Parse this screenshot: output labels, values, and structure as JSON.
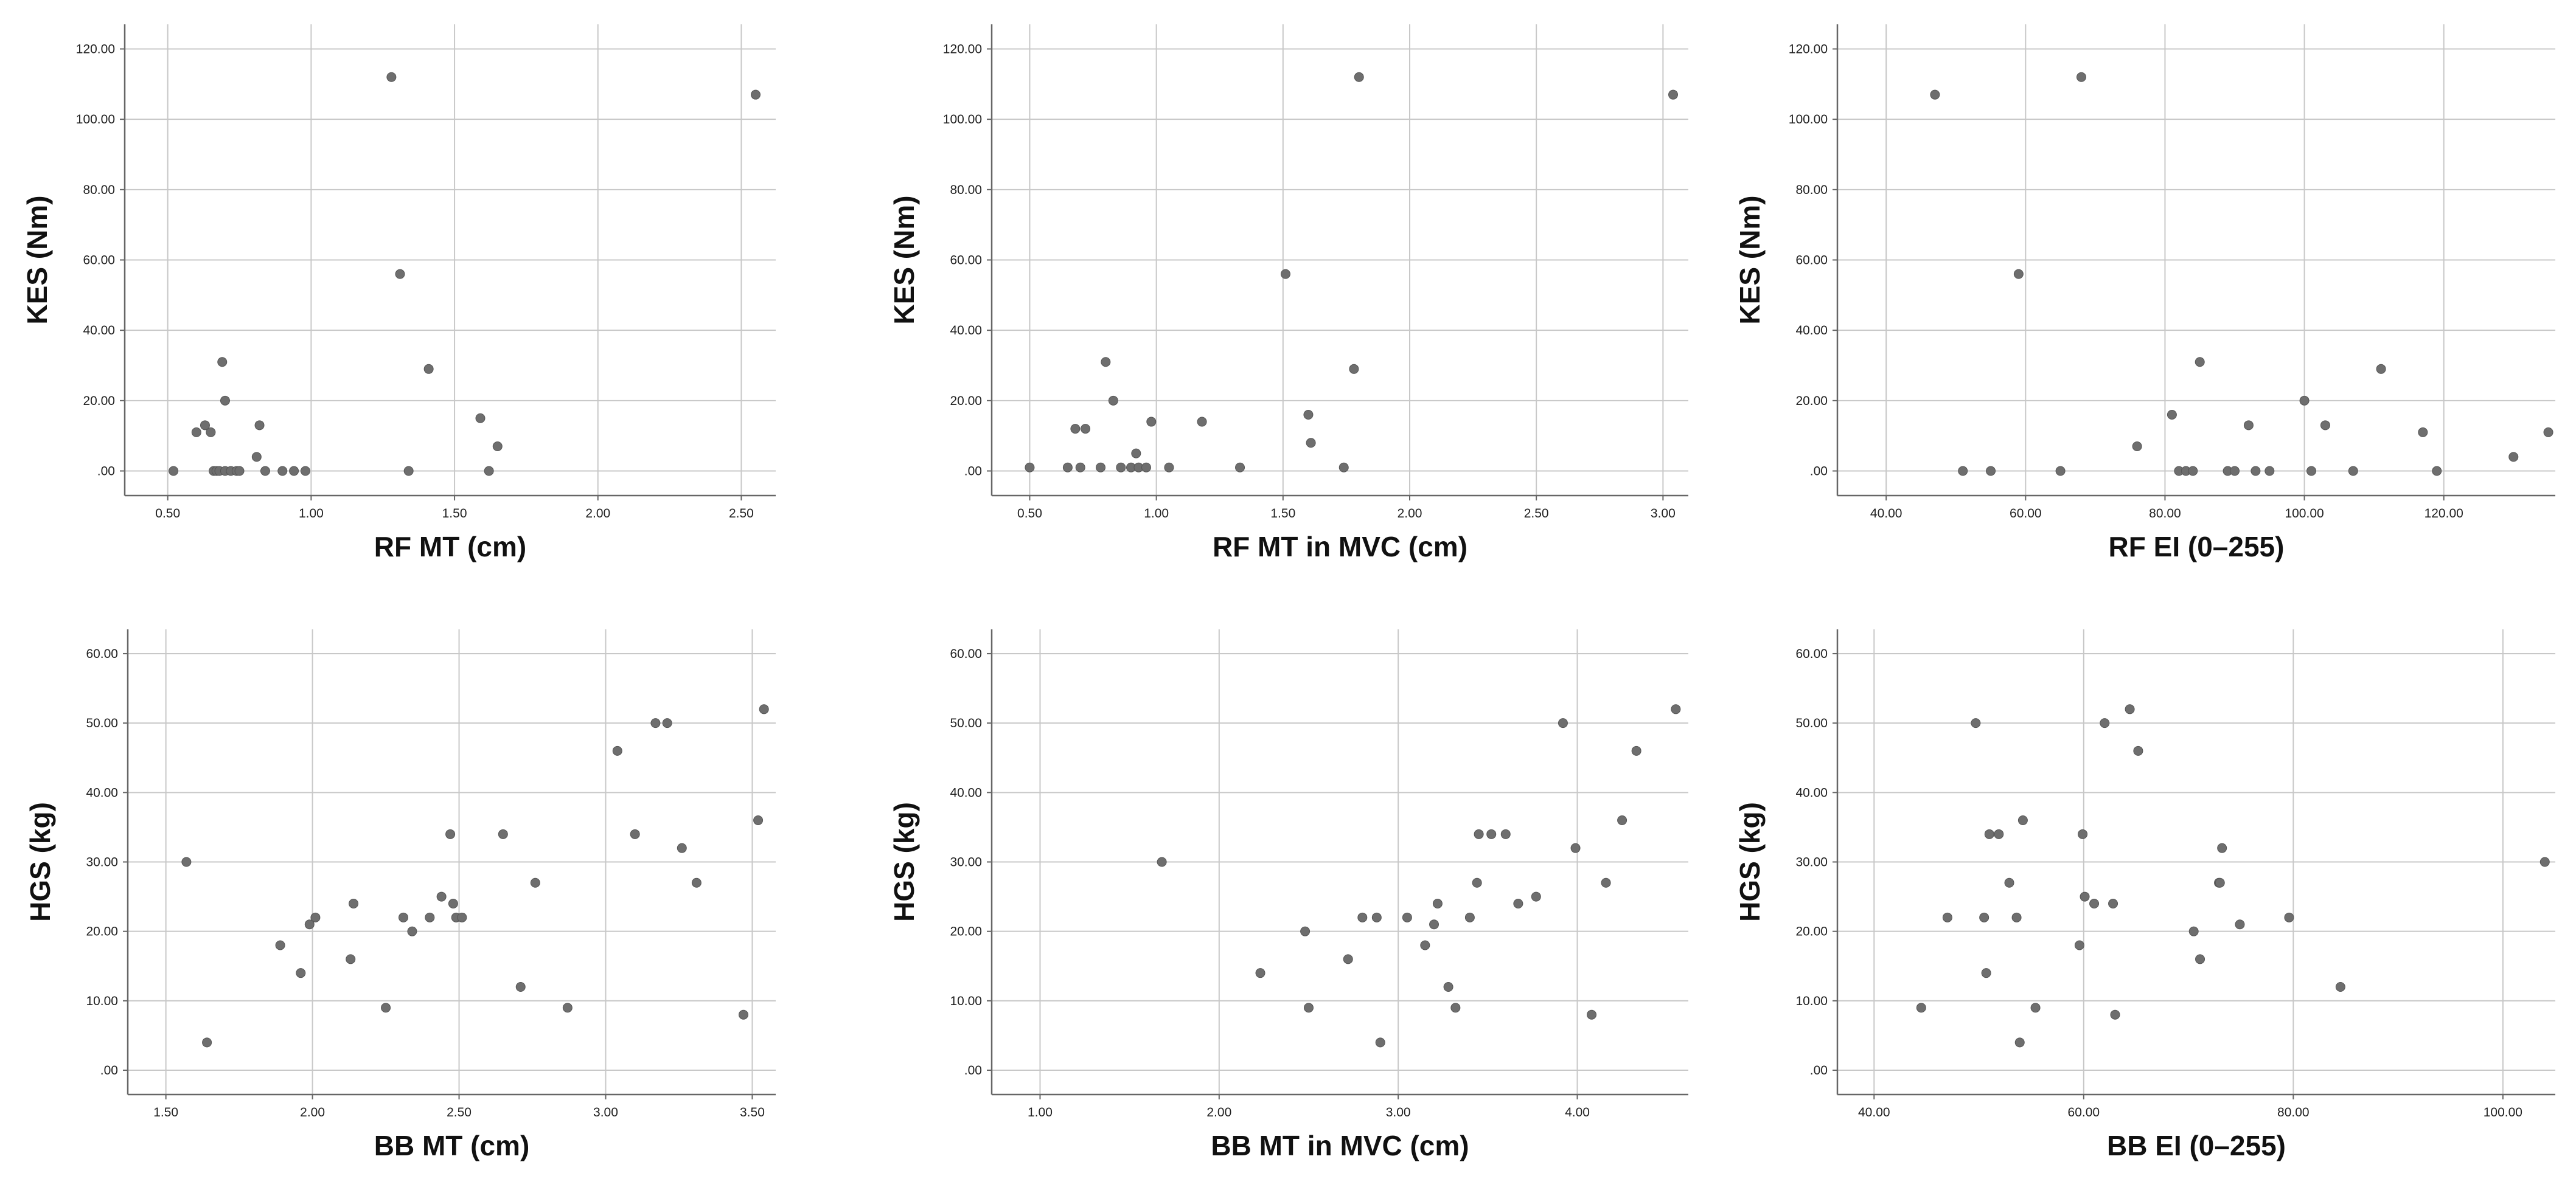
{
  "chart_data": [
    {
      "type": "scatter",
      "xlabel": "RF MT (cm)",
      "ylabel": "KES (Nm)",
      "xlim": [
        0.35,
        2.62
      ],
      "ylim": [
        -7,
        127
      ],
      "xticks": [
        0.5,
        1.0,
        1.5,
        2.0,
        2.5
      ],
      "yticks": [
        0,
        20,
        40,
        60,
        80,
        100,
        120
      ],
      "xtick_labels": [
        "0.50",
        "1.00",
        "1.50",
        "2.00",
        "2.50"
      ],
      "ytick_labels": [
        ".00",
        "20.00",
        "40.00",
        "60.00",
        "80.00",
        "100.00",
        "120.00"
      ],
      "grid": true,
      "x": [
        0.52,
        0.6,
        0.63,
        0.65,
        0.66,
        0.67,
        0.68,
        0.69,
        0.7,
        0.7,
        0.72,
        0.74,
        0.75,
        0.81,
        0.82,
        0.84,
        0.9,
        0.94,
        0.98,
        1.28,
        1.31,
        1.34,
        1.41,
        1.59,
        1.62,
        1.65,
        2.55
      ],
      "y": [
        0,
        11,
        13,
        11,
        0,
        0,
        0,
        31,
        20,
        0,
        0,
        0,
        0,
        4,
        13,
        0,
        0,
        0,
        0,
        112,
        56,
        0,
        29,
        15,
        0,
        7,
        107
      ]
    },
    {
      "type": "scatter",
      "xlabel": "RF MT in MVC (cm)",
      "ylabel": "KES (Nm)",
      "xlim": [
        0.35,
        3.1
      ],
      "ylim": [
        -7,
        127
      ],
      "xticks": [
        0.5,
        1.0,
        1.5,
        2.0,
        2.5,
        3.0
      ],
      "yticks": [
        0,
        20,
        40,
        60,
        80,
        100,
        120
      ],
      "xtick_labels": [
        "0.50",
        "1.00",
        "1.50",
        "2.00",
        "2.50",
        "3.00"
      ],
      "ytick_labels": [
        ".00",
        "20.00",
        "40.00",
        "60.00",
        "80.00",
        "100.00",
        "120.00"
      ],
      "grid": true,
      "x": [
        0.5,
        0.65,
        0.68,
        0.7,
        0.72,
        0.78,
        0.8,
        0.83,
        0.86,
        0.9,
        0.92,
        0.93,
        0.96,
        0.98,
        1.05,
        1.18,
        1.33,
        1.51,
        1.6,
        1.61,
        1.74,
        1.78,
        1.8,
        3.04
      ],
      "y": [
        1,
        1,
        12,
        1,
        12,
        1,
        31,
        20,
        1,
        1,
        5,
        1,
        1,
        14,
        1,
        14,
        1,
        56,
        16,
        8,
        1,
        29,
        112,
        107
      ]
    },
    {
      "type": "scatter",
      "xlabel": "RF EI (0–255)",
      "ylabel": "KES (Nm)",
      "xlim": [
        33,
        136
      ],
      "ylim": [
        -7,
        127
      ],
      "xticks": [
        40,
        60,
        80,
        100,
        120
      ],
      "yticks": [
        0,
        20,
        40,
        60,
        80,
        100,
        120
      ],
      "xtick_labels": [
        "40.00",
        "60.00",
        "80.00",
        "100.00",
        "120.00"
      ],
      "ytick_labels": [
        ".00",
        "20.00",
        "40.00",
        "60.00",
        "80.00",
        "100.00",
        "120.00"
      ],
      "grid": true,
      "x": [
        47,
        51,
        55,
        59,
        65,
        68,
        76,
        81,
        82,
        83,
        84,
        85,
        89,
        90,
        92,
        93,
        95,
        100,
        101,
        103,
        107,
        111,
        117,
        119,
        130,
        135
      ],
      "y": [
        107,
        0,
        0,
        56,
        0,
        112,
        7,
        16,
        0,
        0,
        0,
        31,
        0,
        0,
        13,
        0,
        0,
        20,
        0,
        13,
        0,
        29,
        11,
        0,
        4,
        11
      ]
    },
    {
      "type": "scatter",
      "xlabel": "BB MT (cm)",
      "ylabel": "HGS (kg)",
      "xlim": [
        1.37,
        3.58
      ],
      "ylim": [
        -3.5,
        63.5
      ],
      "xticks": [
        1.5,
        2.0,
        2.5,
        3.0,
        3.5
      ],
      "yticks": [
        0,
        10,
        20,
        30,
        40,
        50,
        60
      ],
      "xtick_labels": [
        "1.50",
        "2.00",
        "2.50",
        "3.00",
        "3.50"
      ],
      "ytick_labels": [
        ".00",
        "10.00",
        "20.00",
        "30.00",
        "40.00",
        "50.00",
        "60.00"
      ],
      "grid": true,
      "x": [
        1.57,
        1.64,
        1.89,
        1.96,
        1.99,
        2.01,
        2.13,
        2.14,
        2.25,
        2.31,
        2.34,
        2.4,
        2.44,
        2.47,
        2.48,
        2.49,
        2.51,
        2.65,
        2.71,
        2.76,
        2.87,
        3.04,
        3.1,
        3.17,
        3.21,
        3.26,
        3.31,
        3.47,
        3.52,
        3.54
      ],
      "y": [
        30,
        4,
        18,
        14,
        21,
        22,
        16,
        24,
        9,
        22,
        20,
        22,
        25,
        34,
        24,
        22,
        22,
        34,
        12,
        27,
        9,
        46,
        34,
        50,
        50,
        32,
        27,
        8,
        36,
        52
      ]
    },
    {
      "type": "scatter",
      "xlabel": "BB MT in MVC (cm)",
      "ylabel": "HGS (kg)",
      "xlim": [
        0.73,
        4.62
      ],
      "ylim": [
        -3.5,
        63.5
      ],
      "xticks": [
        1.0,
        2.0,
        3.0,
        4.0
      ],
      "yticks": [
        0,
        10,
        20,
        30,
        40,
        50,
        60
      ],
      "xtick_labels": [
        "1.00",
        "2.00",
        "3.00",
        "4.00"
      ],
      "ytick_labels": [
        ".00",
        "10.00",
        "20.00",
        "30.00",
        "40.00",
        "50.00",
        "60.00"
      ],
      "grid": true,
      "x": [
        1.68,
        2.23,
        2.48,
        2.5,
        2.72,
        2.8,
        2.88,
        2.9,
        3.05,
        3.15,
        3.2,
        3.22,
        3.28,
        3.32,
        3.4,
        3.44,
        3.45,
        3.52,
        3.6,
        3.67,
        3.77,
        3.92,
        3.99,
        4.08,
        4.16,
        4.25,
        4.33,
        4.55
      ],
      "y": [
        30,
        14,
        20,
        9,
        16,
        22,
        22,
        4,
        22,
        18,
        21,
        24,
        12,
        9,
        22,
        27,
        34,
        34,
        34,
        24,
        25,
        50,
        32,
        8,
        27,
        36,
        46,
        52
      ]
    },
    {
      "type": "scatter",
      "xlabel": "BB EI (0–255)",
      "ylabel": "HGS (kg)",
      "xlim": [
        36.5,
        105
      ],
      "ylim": [
        -3.5,
        63.5
      ],
      "xticks": [
        40,
        60,
        80,
        100
      ],
      "yticks": [
        0,
        10,
        20,
        30,
        40,
        50,
        60
      ],
      "xtick_labels": [
        "40.00",
        "60.00",
        "80.00",
        "100.00"
      ],
      "ytick_labels": [
        ".00",
        "10.00",
        "20.00",
        "30.00",
        "40.00",
        "50.00",
        "60.00"
      ],
      "grid": true,
      "x": [
        44.5,
        47,
        49.7,
        50.5,
        50.7,
        51,
        51.9,
        52.9,
        53.6,
        53.9,
        54.2,
        55.4,
        59.6,
        59.9,
        60.1,
        61,
        62,
        62.8,
        63,
        64.4,
        65.2,
        70.5,
        71.1,
        72.9,
        73,
        73.2,
        74.9,
        79.6,
        84.5,
        104
      ],
      "y": [
        9,
        22,
        50,
        22,
        14,
        34,
        34,
        27,
        22,
        4,
        36,
        9,
        18,
        34,
        25,
        24,
        50,
        24,
        8,
        52,
        46,
        20,
        16,
        27,
        27,
        32,
        21,
        22,
        12,
        30
      ]
    }
  ]
}
